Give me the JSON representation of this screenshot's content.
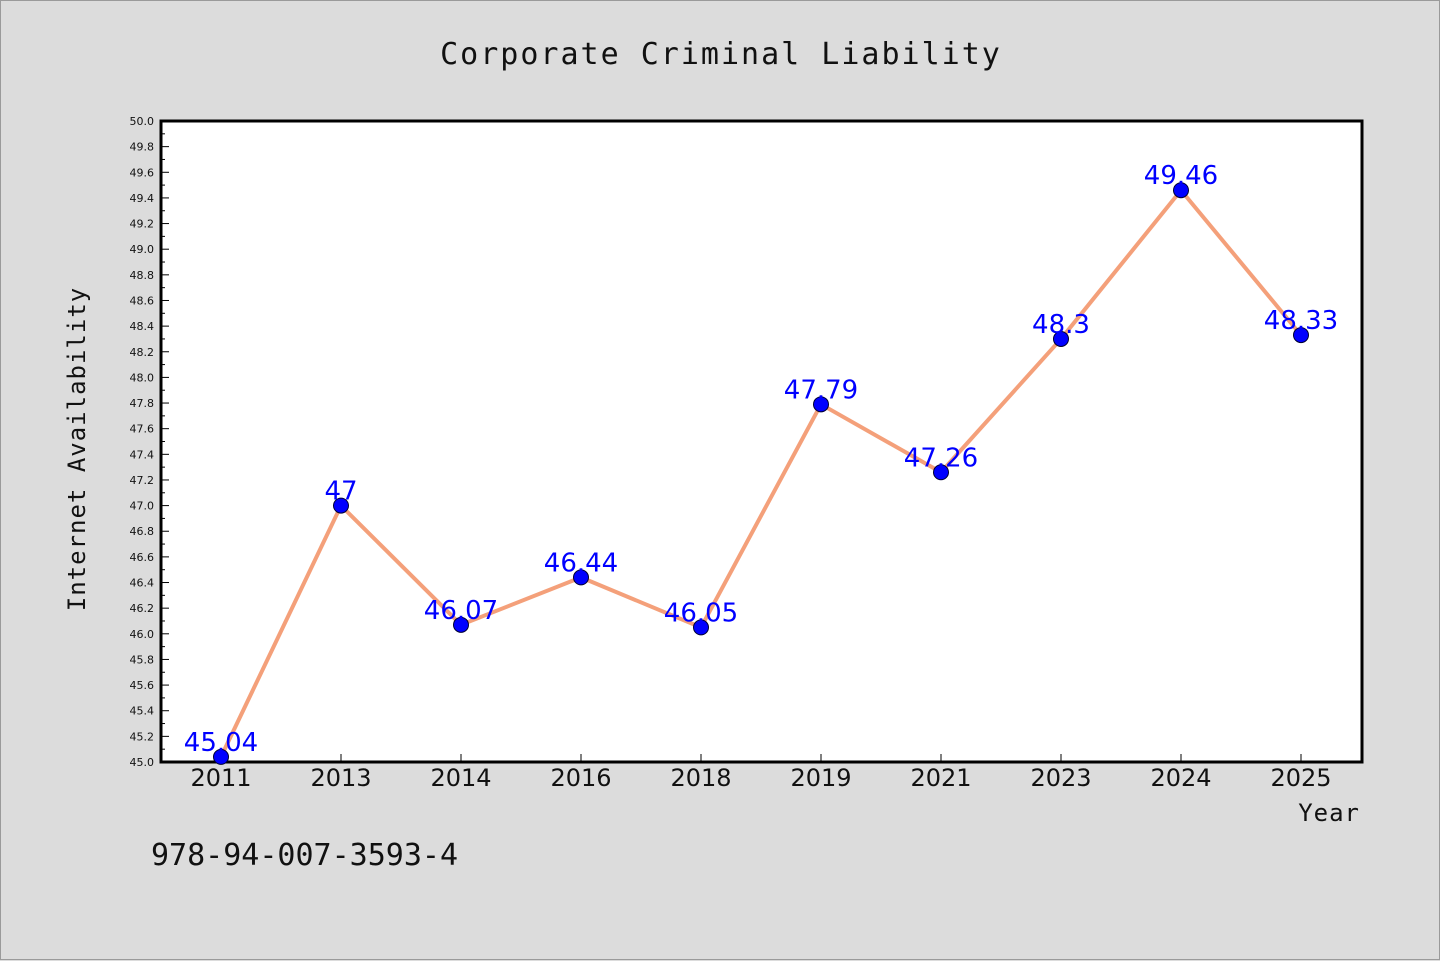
{
  "colors": {
    "background": "#dcdcdc",
    "plot_background": "#ffffff",
    "line": "#f4a07a",
    "marker": "#0000ff",
    "data_label": "#0000ff",
    "text": "#111111"
  },
  "footnote": "978-94-007-3593-4",
  "chart_data": {
    "type": "line",
    "title": "Corporate Criminal Liability",
    "xlabel": "Year",
    "ylabel": "Internet Availability",
    "categories": [
      "2011",
      "2013",
      "2014",
      "2016",
      "2018",
      "2019",
      "2021",
      "2023",
      "2024",
      "2025"
    ],
    "series": [
      {
        "values": [
          45.04,
          47,
          46.07,
          46.44,
          46.05,
          47.79,
          47.26,
          48.3,
          49.46,
          48.33
        ],
        "data_labels": [
          "45.04",
          "47",
          "46.07",
          "46.44",
          "46.05",
          "47.79",
          "47.26",
          "48.3",
          "49.46",
          "48.33"
        ]
      }
    ],
    "ylim": [
      45.0,
      50.0
    ],
    "y_ticks": [
      "45.0",
      "45.2",
      "45.4",
      "45.6",
      "45.8",
      "46.0",
      "46.2",
      "46.4",
      "46.6",
      "46.8",
      "47.0",
      "47.2",
      "47.4",
      "47.6",
      "47.8",
      "48.0",
      "48.2",
      "48.4",
      "48.6",
      "48.8",
      "49.0",
      "49.2",
      "49.4",
      "49.6",
      "49.8",
      "50.0"
    ],
    "grid": false,
    "legend": "none"
  }
}
